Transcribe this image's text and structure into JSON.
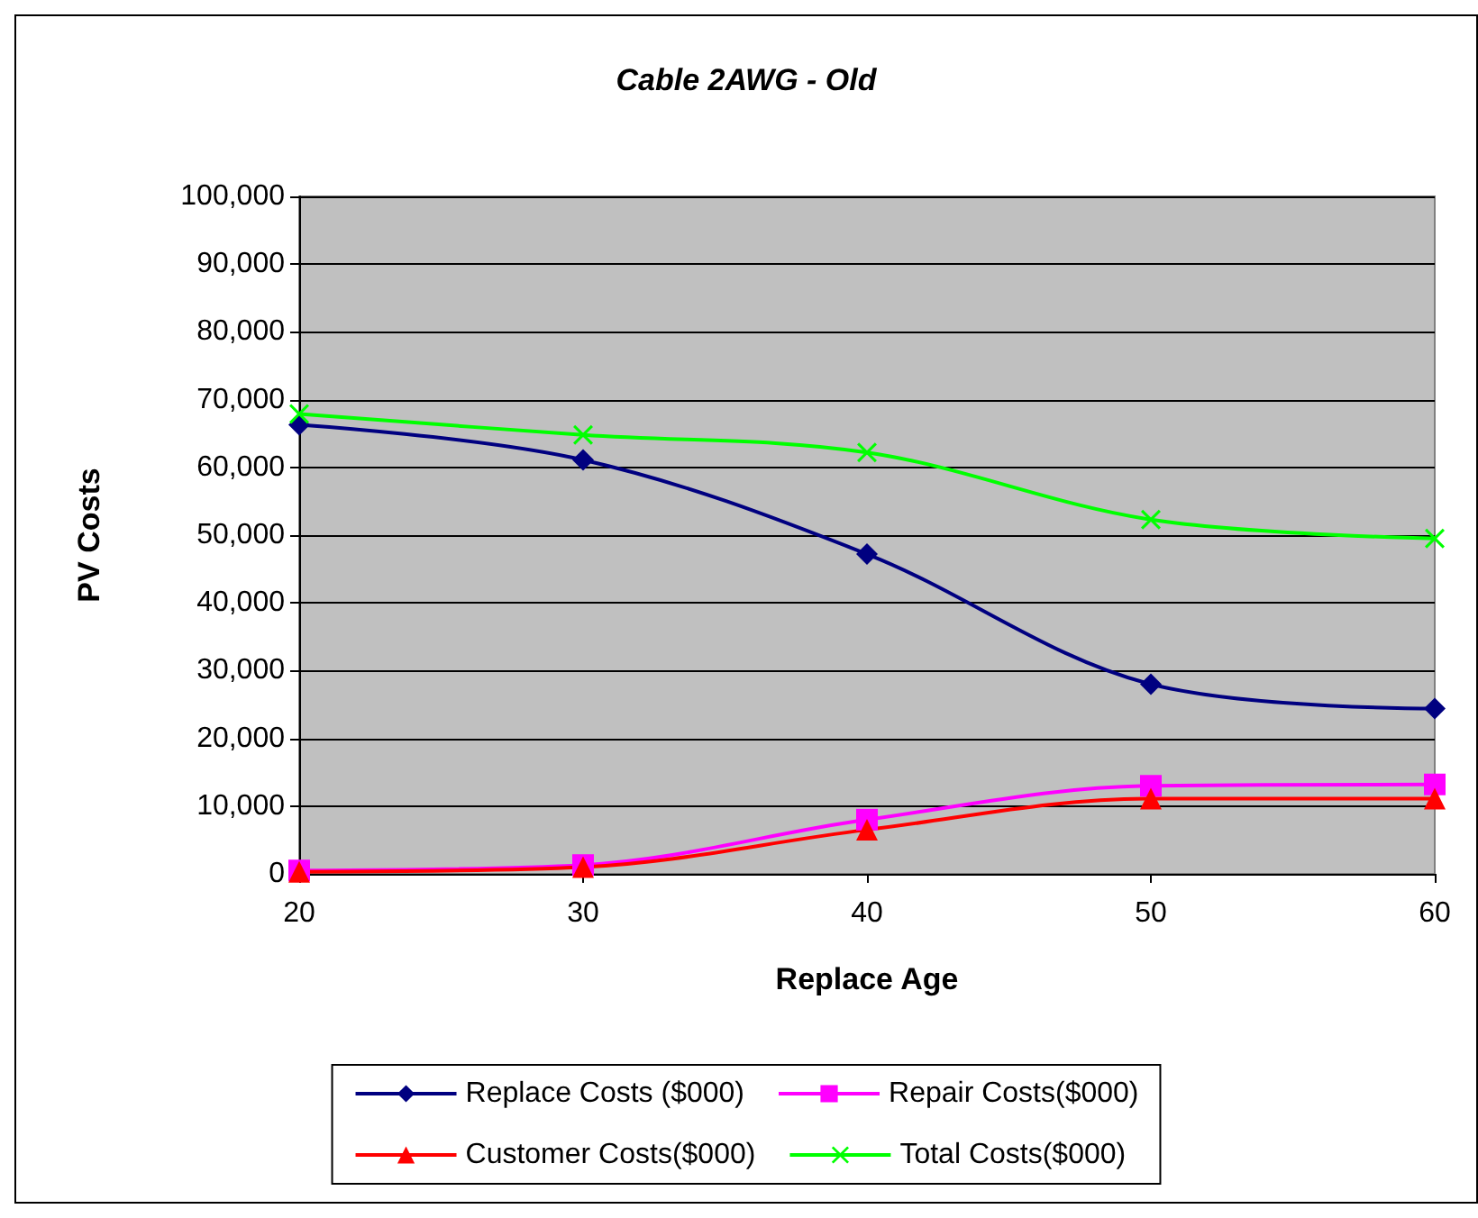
{
  "chart_data": {
    "type": "line",
    "title": "Cable 2AWG - Old",
    "xlabel": "Replace Age",
    "ylabel": "PV Costs",
    "x": [
      20,
      30,
      40,
      50,
      60
    ],
    "series": [
      {
        "name": "Replace Costs ($000)",
        "color": "#000080",
        "marker": "diamond",
        "values": [
          66300,
          61100,
          47200,
          28000,
          24400
        ]
      },
      {
        "name": "Repair Costs($000)",
        "color": "#ff00ff",
        "marker": "square",
        "values": [
          500,
          1300,
          8000,
          13000,
          13200
        ]
      },
      {
        "name": "Customer Costs($000)",
        "color": "#ff0000",
        "marker": "triangle",
        "values": [
          300,
          1000,
          6500,
          11100,
          11100
        ]
      },
      {
        "name": "Total Costs($000)",
        "color": "#00ff00",
        "marker": "cross",
        "values": [
          67900,
          64800,
          62200,
          52300,
          49500
        ]
      }
    ],
    "xlim": [
      20,
      60
    ],
    "xticks": [
      20,
      30,
      40,
      50,
      60
    ],
    "ylim": [
      0,
      100000
    ],
    "yticks": [
      0,
      {
        "value": 10000,
        "label": "10,000"
      },
      {
        "value": 20000,
        "label": "20,000"
      },
      {
        "value": 30000,
        "label": "30,000"
      },
      {
        "value": 40000,
        "label": "40,000"
      },
      {
        "value": 50000,
        "label": "50,000"
      },
      {
        "value": 60000,
        "label": "60,000"
      },
      {
        "value": 70000,
        "label": "70,000"
      },
      {
        "value": 80000,
        "label": "80,000"
      },
      {
        "value": 90000,
        "label": "90,000"
      },
      {
        "value": 100000,
        "label": "100,000"
      }
    ],
    "grid": "y",
    "legend": "bottom",
    "line_style": "solid"
  }
}
